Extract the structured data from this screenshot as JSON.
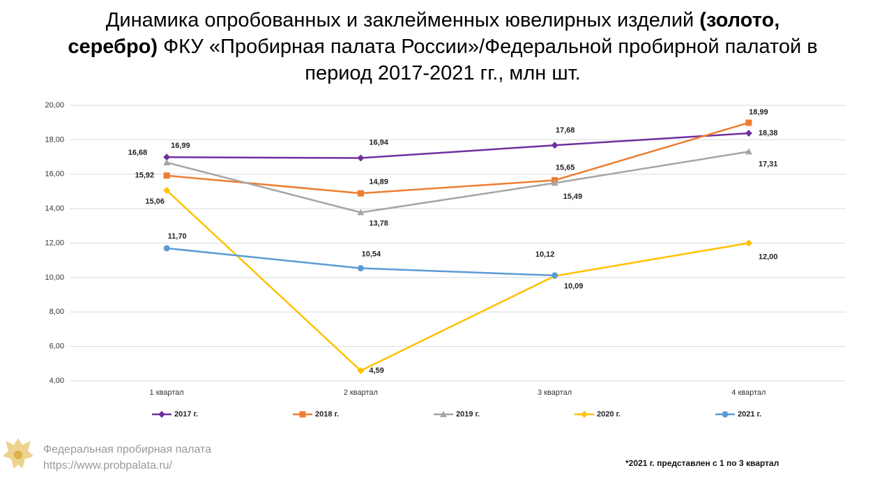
{
  "chart_data": {
    "type": "line",
    "title": [
      "Динамика опробованных  и заклейменных ювелирных изделий ",
      "(золото, серебро)",
      "  ФКУ «Пробирная палата России»/Федеральной пробирной палатой в период 2017-2021 гг., млн шт."
    ],
    "categories": [
      "1 квартал",
      "2 квартал",
      "3 квартал",
      "4 квартал"
    ],
    "series": [
      {
        "name": "2017 г.",
        "color": "#7030a0",
        "marker": "diamond",
        "values": [
          16.99,
          16.94,
          17.68,
          18.38
        ],
        "value_labels": [
          "16,99",
          "16,94",
          "17,68",
          "18,38"
        ]
      },
      {
        "name": "2018 г.",
        "color": "#ed7d31",
        "marker": "square",
        "values": [
          15.92,
          14.89,
          15.65,
          18.99
        ],
        "value_labels": [
          "15,92",
          "14,89",
          "15,65",
          "18,99"
        ]
      },
      {
        "name": "2019 г.",
        "color": "#a5a5a5",
        "marker": "triangle",
        "values": [
          16.68,
          13.78,
          15.49,
          17.31
        ],
        "value_labels": [
          "16,68",
          "13,78",
          "15,49",
          "17,31"
        ]
      },
      {
        "name": "2020 г.",
        "color": "#ffc000",
        "marker": "diamond",
        "values": [
          15.06,
          4.59,
          10.09,
          12.0
        ],
        "value_labels": [
          "15,06",
          "4,59",
          "10,09",
          "12,00"
        ]
      },
      {
        "name": "2021 г.",
        "color": "#5b9bd5",
        "marker": "circle",
        "values": [
          11.7,
          10.54,
          10.12,
          null
        ],
        "value_labels": [
          "11,70",
          "10,54",
          "10,12",
          null
        ]
      }
    ],
    "ylim": [
      4,
      20
    ],
    "yticks": [
      {
        "value": 4,
        "label": "4,00"
      },
      {
        "value": 6,
        "label": "6,00"
      },
      {
        "value": 8,
        "label": "8,00"
      },
      {
        "value": 10,
        "label": "10,00"
      },
      {
        "value": 12,
        "label": "12,00"
      },
      {
        "value": 14,
        "label": "14,00"
      },
      {
        "value": 16,
        "label": "16,00"
      },
      {
        "value": 18,
        "label": "18,00"
      },
      {
        "value": 20,
        "label": "20,00"
      }
    ],
    "grid": true,
    "legend": "bottom"
  },
  "footer": {
    "org": "Федеральная пробирная палата",
    "url": "https://www.probpalata.ru/",
    "note": "*2021 г. представлен с 1 по 3 квартал"
  }
}
